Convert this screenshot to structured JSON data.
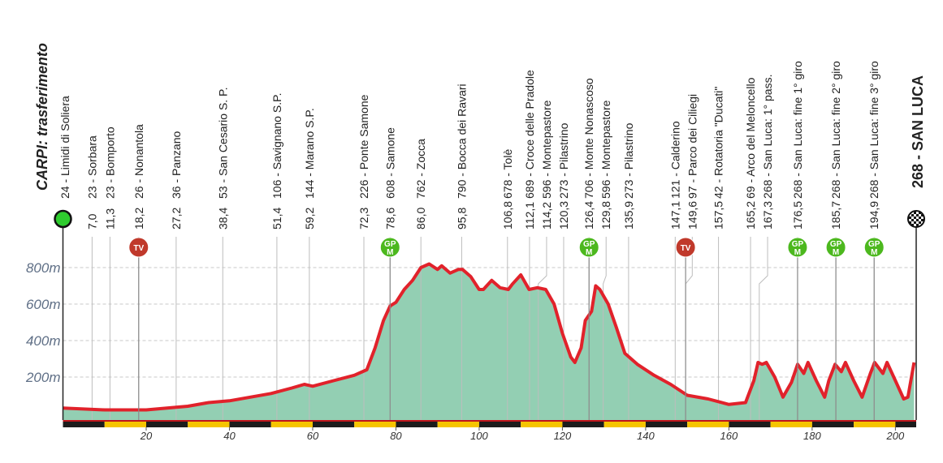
{
  "chart_data": {
    "type": "area",
    "start": {
      "title": "CARPI: trasferimento",
      "label": "24 - Limidi di Soliera"
    },
    "finish": "268 - SAN LUCA",
    "waypoints": [
      {
        "name": "23 - Sorbara",
        "km": {
          "value": 7.0,
          "label": "7,0"
        }
      },
      {
        "name": "23 - Bomporto",
        "km": {
          "value": 11.3,
          "label": "11,3"
        }
      },
      {
        "name": "26 - Nonantola",
        "km": {
          "value": 18.2,
          "label": "18,2"
        }
      },
      {
        "name": "36 - Panzano",
        "km": {
          "value": 27.2,
          "label": "27,2"
        }
      },
      {
        "name": "53 - San Cesario S. P.",
        "km": {
          "value": 38.4,
          "label": "38,4"
        }
      },
      {
        "name": "106 - Savignano S.P.",
        "km": {
          "value": 51.4,
          "label": "51,4"
        }
      },
      {
        "name": "144 - Marano S.P.",
        "km": {
          "value": 59.2,
          "label": "59,2"
        }
      },
      {
        "name": "226 - Ponte Samone",
        "km": {
          "value": 72.3,
          "label": "72,3"
        }
      },
      {
        "name": "608 - Samone",
        "km": {
          "value": 78.6,
          "label": "78,6"
        }
      },
      {
        "name": "762 - Zocca",
        "km": {
          "value": 86.0,
          "label": "86,0"
        }
      },
      {
        "name": "790 - Bocca dei Ravari",
        "km": {
          "value": 95.8,
          "label": "95,8"
        }
      },
      {
        "name": "678 - Tolè",
        "km": {
          "value": 106.8,
          "label": "106,8"
        }
      },
      {
        "name": "689 - Croce delle Pradole",
        "km": {
          "value": 112.1,
          "label": "112,1"
        }
      },
      {
        "name": "596 - Montepastore",
        "km": {
          "value": 114.2,
          "label": "114,2"
        }
      },
      {
        "name": "273 - Pilastrino",
        "km": {
          "value": 120.3,
          "label": "120,3"
        }
      },
      {
        "name": "706 - Monte Nonascoso",
        "km": {
          "value": 126.4,
          "label": "126,4"
        }
      },
      {
        "name": "596 - Montepastore",
        "km": {
          "value": 129.8,
          "label": "129,8"
        }
      },
      {
        "name": "273 - Pilastrino",
        "km": {
          "value": 135.9,
          "label": "135,9"
        }
      },
      {
        "name": "121 - Calderino",
        "km": {
          "value": 147.1,
          "label": "147,1"
        }
      },
      {
        "name": "97 - Parco dei Ciliegi",
        "km": {
          "value": 149.6,
          "label": "149,6"
        }
      },
      {
        "name": "42 - Rotatoria \"Ducati\"",
        "km": {
          "value": 157.5,
          "label": "157,5"
        }
      },
      {
        "name": "69 - Arco del Meloncello",
        "km": {
          "value": 165.2,
          "label": "165,2"
        }
      },
      {
        "name": "268 - San Luca: 1° pass.",
        "km": {
          "value": 167.3,
          "label": "167,3"
        }
      },
      {
        "name": "268 - San Luca: fine 1° giro",
        "km": {
          "value": 176.5,
          "label": "176,5"
        }
      },
      {
        "name": "268 - San Luca: fine 2° giro",
        "km": {
          "value": 185.7,
          "label": "185,7"
        }
      },
      {
        "name": "268 - San Luca: fine 3° giro",
        "km": {
          "value": 194.9,
          "label": "194,9"
        }
      }
    ],
    "markers": [
      {
        "km": 18.2,
        "lines": [
          "TV"
        ],
        "color": "#c0392b"
      },
      {
        "km": 78.6,
        "lines": [
          "GP",
          "M"
        ],
        "color": "#4cb81e"
      },
      {
        "km": 126.4,
        "lines": [
          "GP",
          "M"
        ],
        "color": "#4cb81e"
      },
      {
        "km": 149.6,
        "lines": [
          "TV"
        ],
        "color": "#c0392b"
      },
      {
        "km": 176.5,
        "lines": [
          "GP",
          "M"
        ],
        "color": "#4cb81e"
      },
      {
        "km": 185.7,
        "lines": [
          "GP",
          "M"
        ],
        "color": "#4cb81e"
      },
      {
        "km": 194.9,
        "lines": [
          "GP",
          "M"
        ],
        "color": "#4cb81e"
      }
    ],
    "x": [
      0,
      10,
      20,
      25,
      30,
      35,
      40,
      45,
      50,
      55,
      58,
      60,
      65,
      70,
      73,
      75,
      77,
      78.6,
      80,
      82,
      84,
      86,
      88,
      90,
      91,
      93,
      95,
      96,
      98,
      100,
      101,
      103,
      105,
      107,
      108,
      110,
      112,
      114,
      116,
      118,
      120,
      122,
      123,
      124.5,
      125.5,
      127,
      128,
      129,
      131,
      133,
      135,
      138,
      142,
      146,
      150,
      155,
      160,
      164,
      166,
      167,
      168,
      169,
      171,
      173,
      175,
      176.5,
      178,
      179,
      181,
      183,
      184,
      185.5,
      187,
      188,
      190,
      192,
      194,
      195,
      197,
      198,
      200,
      202,
      203,
      204.5
    ],
    "values": [
      30,
      20,
      20,
      30,
      40,
      60,
      70,
      90,
      110,
      140,
      160,
      150,
      180,
      210,
      240,
      360,
      510,
      590,
      610,
      680,
      730,
      800,
      820,
      790,
      810,
      770,
      790,
      790,
      750,
      680,
      680,
      730,
      690,
      680,
      710,
      760,
      680,
      690,
      680,
      600,
      440,
      310,
      280,
      360,
      510,
      560,
      700,
      680,
      600,
      470,
      330,
      270,
      210,
      160,
      100,
      80,
      50,
      60,
      180,
      280,
      270,
      280,
      200,
      90,
      170,
      270,
      220,
      280,
      180,
      90,
      180,
      270,
      230,
      280,
      180,
      90,
      220,
      280,
      220,
      280,
      180,
      80,
      90,
      280
    ],
    "fill": "#93cfb3",
    "line_color": "#e1222b",
    "xlim": [
      0,
      205
    ],
    "ylim": [
      0,
      850
    ],
    "xticks": [
      20,
      40,
      60,
      80,
      100,
      120,
      140,
      160,
      180,
      200
    ],
    "yticks": [
      {
        "value": 200,
        "label": "200m"
      },
      {
        "value": 400,
        "label": "400m"
      },
      {
        "value": 600,
        "label": "600m"
      },
      {
        "value": 800,
        "label": "800m"
      }
    ],
    "grid": true
  }
}
